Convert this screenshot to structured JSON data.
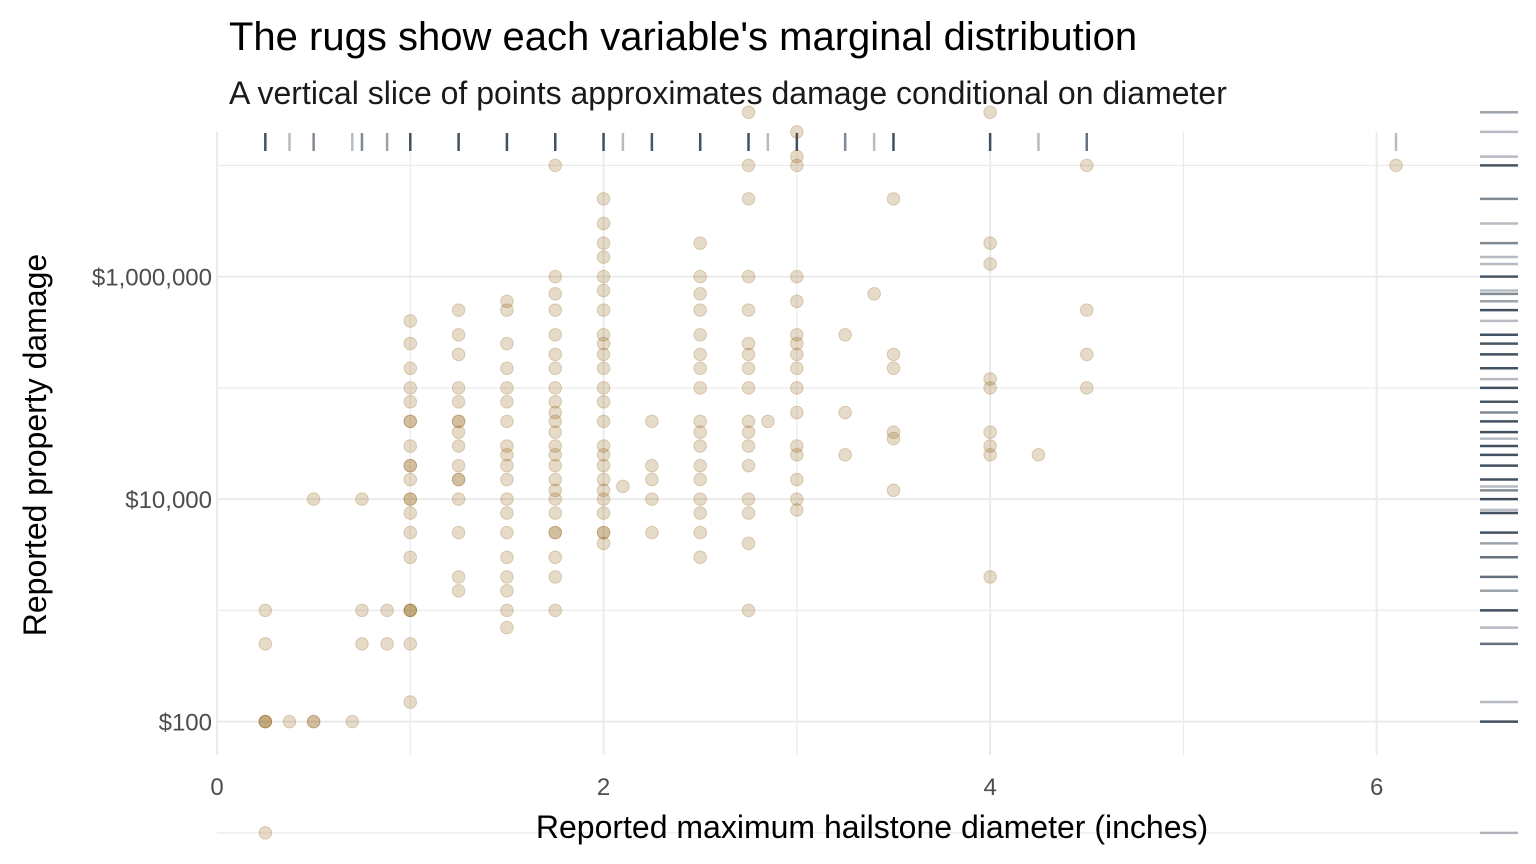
{
  "chart_data": {
    "type": "scatter",
    "title": "The rugs show each variable's marginal distribution",
    "subtitle": "A vertical slice of points approximates damage conditional on diameter",
    "xlabel": "Reported maximum hailstone diameter (inches)",
    "ylabel": "Reported property damage",
    "xlim": [
      0,
      6.4
    ],
    "ylim_log10": [
      1.7,
      7.3
    ],
    "y_scale": "log10",
    "x_ticks": [
      {
        "value": 0,
        "label": "0"
      },
      {
        "value": 2,
        "label": "2"
      },
      {
        "value": 4,
        "label": "4"
      },
      {
        "value": 6,
        "label": "6"
      }
    ],
    "y_ticks": [
      {
        "value": 100,
        "label": "$100"
      },
      {
        "value": 10000,
        "label": "$10,000"
      },
      {
        "value": 1000000,
        "label": "$1,000,000"
      }
    ],
    "grid": true,
    "point_color": "#8C5A0A",
    "rug_color": "#2F3F4F",
    "rugs": [
      "top",
      "right"
    ],
    "points": [
      [
        0.25,
        10
      ],
      [
        0.25,
        100
      ],
      [
        0.25,
        100
      ],
      [
        0.25,
        100
      ],
      [
        0.25,
        500
      ],
      [
        0.25,
        1000
      ],
      [
        0.375,
        100
      ],
      [
        0.5,
        100
      ],
      [
        0.5,
        100
      ],
      [
        0.5,
        10000
      ],
      [
        0.7,
        100
      ],
      [
        0.75,
        500
      ],
      [
        0.75,
        1000
      ],
      [
        0.75,
        10000
      ],
      [
        0.88,
        500
      ],
      [
        0.88,
        1000
      ],
      [
        1.0,
        150
      ],
      [
        1.0,
        500
      ],
      [
        1.0,
        1000
      ],
      [
        1.0,
        1000
      ],
      [
        1.0,
        1000
      ],
      [
        1.0,
        3000
      ],
      [
        1.0,
        5000
      ],
      [
        1.0,
        7500
      ],
      [
        1.0,
        10000
      ],
      [
        1.0,
        10000
      ],
      [
        1.0,
        15000
      ],
      [
        1.0,
        20000
      ],
      [
        1.0,
        20000
      ],
      [
        1.0,
        30000
      ],
      [
        1.0,
        50000
      ],
      [
        1.0,
        50000
      ],
      [
        1.0,
        75000
      ],
      [
        1.0,
        100000
      ],
      [
        1.0,
        150000
      ],
      [
        1.0,
        250000
      ],
      [
        1.0,
        400000
      ],
      [
        1.25,
        1500
      ],
      [
        1.25,
        2000
      ],
      [
        1.25,
        5000
      ],
      [
        1.25,
        10000
      ],
      [
        1.25,
        15000
      ],
      [
        1.25,
        15000
      ],
      [
        1.25,
        20000
      ],
      [
        1.25,
        30000
      ],
      [
        1.25,
        40000
      ],
      [
        1.25,
        50000
      ],
      [
        1.25,
        50000
      ],
      [
        1.25,
        75000
      ],
      [
        1.25,
        100000
      ],
      [
        1.25,
        200000
      ],
      [
        1.25,
        300000
      ],
      [
        1.25,
        500000
      ],
      [
        1.5,
        700
      ],
      [
        1.5,
        1000
      ],
      [
        1.5,
        1500
      ],
      [
        1.5,
        2000
      ],
      [
        1.5,
        3000
      ],
      [
        1.5,
        5000
      ],
      [
        1.5,
        7500
      ],
      [
        1.5,
        10000
      ],
      [
        1.5,
        15000
      ],
      [
        1.5,
        20000
      ],
      [
        1.5,
        25000
      ],
      [
        1.5,
        30000
      ],
      [
        1.5,
        50000
      ],
      [
        1.5,
        75000
      ],
      [
        1.5,
        100000
      ],
      [
        1.5,
        150000
      ],
      [
        1.5,
        250000
      ],
      [
        1.5,
        500000
      ],
      [
        1.5,
        600000
      ],
      [
        1.75,
        1000
      ],
      [
        1.75,
        2000
      ],
      [
        1.75,
        3000
      ],
      [
        1.75,
        5000
      ],
      [
        1.75,
        5000
      ],
      [
        1.75,
        7500
      ],
      [
        1.75,
        10000
      ],
      [
        1.75,
        12000
      ],
      [
        1.75,
        15000
      ],
      [
        1.75,
        20000
      ],
      [
        1.75,
        25000
      ],
      [
        1.75,
        30000
      ],
      [
        1.75,
        40000
      ],
      [
        1.75,
        50000
      ],
      [
        1.75,
        60000
      ],
      [
        1.75,
        75000
      ],
      [
        1.75,
        100000
      ],
      [
        1.75,
        150000
      ],
      [
        1.75,
        200000
      ],
      [
        1.75,
        300000
      ],
      [
        1.75,
        500000
      ],
      [
        1.75,
        700000
      ],
      [
        1.75,
        1000000
      ],
      [
        1.75,
        10000000
      ],
      [
        2.0,
        4000
      ],
      [
        2.0,
        5000
      ],
      [
        2.0,
        5000
      ],
      [
        2.0,
        7500
      ],
      [
        2.0,
        10000
      ],
      [
        2.0,
        12000
      ],
      [
        2.0,
        15000
      ],
      [
        2.0,
        20000
      ],
      [
        2.0,
        25000
      ],
      [
        2.0,
        30000
      ],
      [
        2.0,
        50000
      ],
      [
        2.0,
        75000
      ],
      [
        2.0,
        100000
      ],
      [
        2.0,
        150000
      ],
      [
        2.0,
        200000
      ],
      [
        2.0,
        250000
      ],
      [
        2.0,
        300000
      ],
      [
        2.0,
        500000
      ],
      [
        2.0,
        750000
      ],
      [
        2.0,
        1000000
      ],
      [
        2.0,
        1500000
      ],
      [
        2.0,
        2000000
      ],
      [
        2.0,
        3000000
      ],
      [
        2.0,
        5000000
      ],
      [
        2.1,
        13000
      ],
      [
        2.25,
        5000
      ],
      [
        2.25,
        10000
      ],
      [
        2.25,
        15000
      ],
      [
        2.25,
        20000
      ],
      [
        2.25,
        50000
      ],
      [
        2.5,
        3000
      ],
      [
        2.5,
        5000
      ],
      [
        2.5,
        7500
      ],
      [
        2.5,
        10000
      ],
      [
        2.5,
        15000
      ],
      [
        2.5,
        20000
      ],
      [
        2.5,
        30000
      ],
      [
        2.5,
        40000
      ],
      [
        2.5,
        50000
      ],
      [
        2.5,
        100000
      ],
      [
        2.5,
        150000
      ],
      [
        2.5,
        200000
      ],
      [
        2.5,
        300000
      ],
      [
        2.5,
        500000
      ],
      [
        2.5,
        700000
      ],
      [
        2.5,
        1000000
      ],
      [
        2.5,
        2000000
      ],
      [
        2.75,
        1000
      ],
      [
        2.75,
        4000
      ],
      [
        2.75,
        7500
      ],
      [
        2.75,
        10000
      ],
      [
        2.75,
        20000
      ],
      [
        2.75,
        30000
      ],
      [
        2.75,
        40000
      ],
      [
        2.75,
        50000
      ],
      [
        2.75,
        100000
      ],
      [
        2.75,
        150000
      ],
      [
        2.75,
        200000
      ],
      [
        2.75,
        250000
      ],
      [
        2.75,
        500000
      ],
      [
        2.75,
        1000000
      ],
      [
        2.75,
        5000000
      ],
      [
        2.75,
        10000000
      ],
      [
        2.75,
        30000000
      ],
      [
        2.85,
        50000
      ],
      [
        3.0,
        8000
      ],
      [
        3.0,
        10000
      ],
      [
        3.0,
        15000
      ],
      [
        3.0,
        25000
      ],
      [
        3.0,
        30000
      ],
      [
        3.0,
        60000
      ],
      [
        3.0,
        100000
      ],
      [
        3.0,
        150000
      ],
      [
        3.0,
        200000
      ],
      [
        3.0,
        250000
      ],
      [
        3.0,
        300000
      ],
      [
        3.0,
        600000
      ],
      [
        3.0,
        1000000
      ],
      [
        3.0,
        10000000
      ],
      [
        3.0,
        12000000
      ],
      [
        3.0,
        20000000
      ],
      [
        3.25,
        25000
      ],
      [
        3.25,
        60000
      ],
      [
        3.25,
        300000
      ],
      [
        3.4,
        700000
      ],
      [
        3.5,
        12000
      ],
      [
        3.5,
        35000
      ],
      [
        3.5,
        40000
      ],
      [
        3.5,
        150000
      ],
      [
        3.5,
        200000
      ],
      [
        3.5,
        5000000
      ],
      [
        4.0,
        2000
      ],
      [
        4.0,
        25000
      ],
      [
        4.0,
        30000
      ],
      [
        4.0,
        40000
      ],
      [
        4.0,
        100000
      ],
      [
        4.0,
        120000
      ],
      [
        4.0,
        1300000
      ],
      [
        4.0,
        2000000
      ],
      [
        4.0,
        30000000
      ],
      [
        4.25,
        25000
      ],
      [
        4.5,
        100000
      ],
      [
        4.5,
        200000
      ],
      [
        4.5,
        500000
      ],
      [
        4.5,
        10000000
      ],
      [
        6.1,
        10000000
      ]
    ]
  }
}
